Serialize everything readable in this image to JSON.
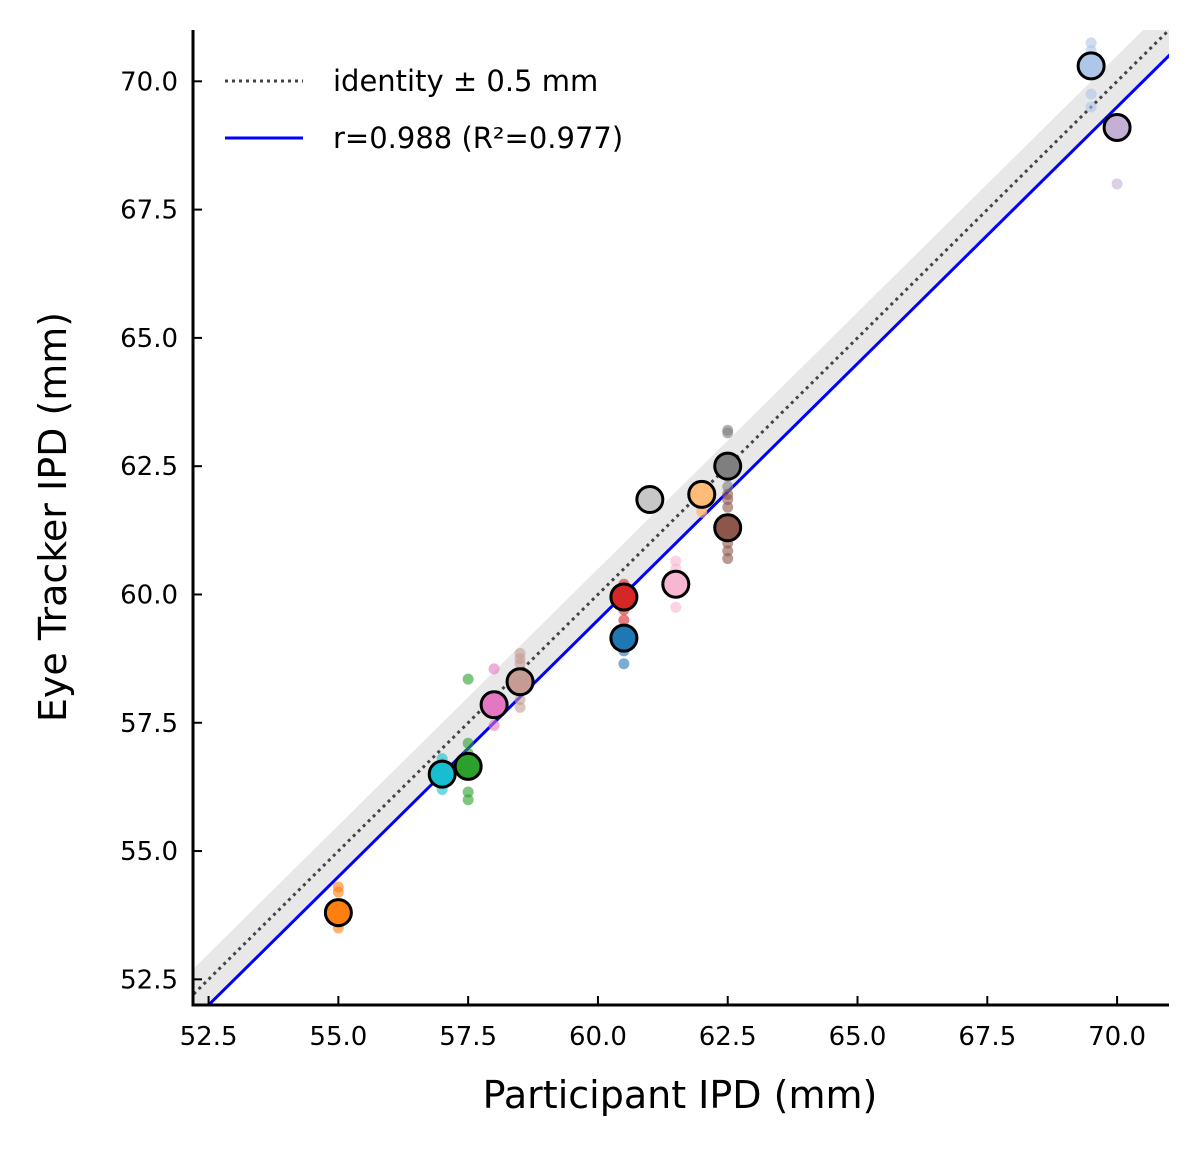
{
  "chart_data": {
    "type": "scatter",
    "xlabel": "Participant IPD (mm)",
    "ylabel": "Eye Tracker IPD (mm)",
    "xlim": [
      52.2,
      71.0
    ],
    "ylim": [
      52.0,
      71.0
    ],
    "xticks": [
      "52.5",
      "55.0",
      "57.5",
      "60.0",
      "62.5",
      "65.0",
      "67.5",
      "70.0"
    ],
    "yticks": [
      "52.5",
      "55.0",
      "57.5",
      "60.0",
      "62.5",
      "65.0",
      "67.5",
      "70.0"
    ],
    "grid": false,
    "legend_position": "top-left",
    "legend": [
      {
        "label": "identity ± 0.5 mm",
        "style": "dotted",
        "color": "#444444"
      },
      {
        "label": "r=0.988 (R²=0.977)",
        "style": "solid",
        "color": "#0000ff"
      }
    ],
    "identity_band_mm": 0.5,
    "band_color": "#e8e8e8",
    "regression": {
      "slope": 1.0,
      "intercept": -0.5,
      "color": "#0000ff"
    },
    "participants": [
      {
        "color": "#aec7e8",
        "x": 69.5,
        "mean": 70.3,
        "samples": [
          70.75,
          70.6,
          69.75,
          69.5
        ]
      },
      {
        "color": "#c5b0d5",
        "x": 70.0,
        "mean": 69.1,
        "samples": [
          68.0
        ]
      },
      {
        "color": "#7f7f7f",
        "x": 62.5,
        "mean": 62.5,
        "samples": [
          63.2,
          63.15,
          62.6,
          62.3,
          62.1
        ]
      },
      {
        "color": "#ffbb78",
        "x": 62.0,
        "mean": 61.95,
        "samples": [
          61.65,
          61.6
        ]
      },
      {
        "color": "#c7c7c7",
        "x": 61.0,
        "mean": 61.85,
        "samples": []
      },
      {
        "color": "#8c564b",
        "x": 62.5,
        "mean": 61.3,
        "samples": [
          61.95,
          61.85,
          61.7,
          61.0,
          60.85,
          60.7
        ]
      },
      {
        "color": "#f7b6d2",
        "x": 61.5,
        "mean": 60.2,
        "samples": [
          60.65,
          60.5,
          59.75
        ]
      },
      {
        "color": "#d62728",
        "x": 60.5,
        "mean": 59.95,
        "samples": [
          60.2,
          59.7,
          59.5
        ]
      },
      {
        "color": "#1f77b4",
        "x": 60.5,
        "mean": 59.15,
        "samples": [
          58.9,
          58.65
        ]
      },
      {
        "color": "#c49c94",
        "x": 58.5,
        "mean": 58.3,
        "samples": [
          58.85,
          58.75,
          58.65,
          57.95,
          57.8
        ]
      },
      {
        "color": "#e377c2",
        "x": 58.0,
        "mean": 57.85,
        "samples": [
          58.55,
          57.45
        ]
      },
      {
        "color": "#2ca02c",
        "x": 57.5,
        "mean": 56.65,
        "samples": [
          58.35,
          57.1,
          56.9,
          56.15,
          56.0
        ]
      },
      {
        "color": "#17becf",
        "x": 57.0,
        "mean": 56.5,
        "samples": [
          56.8,
          56.7,
          56.2
        ]
      },
      {
        "color": "#ff7f0e",
        "x": 55.0,
        "mean": 53.8,
        "samples": [
          54.3,
          54.2,
          53.6,
          53.5
        ]
      }
    ]
  }
}
